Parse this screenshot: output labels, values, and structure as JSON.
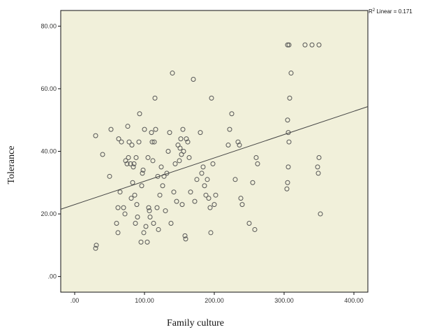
{
  "chart_data": {
    "type": "scatter",
    "title": "",
    "xlabel": "Family culture",
    "ylabel": "Tolerance",
    "xlim": [
      -20,
      420
    ],
    "ylim": [
      -5,
      85
    ],
    "xticks": [
      0,
      100,
      200,
      300,
      400
    ],
    "yticks": [
      0,
      20,
      40,
      60,
      80
    ],
    "xtick_labels": [
      ".00",
      "100.00",
      "200.00",
      "300.00",
      "400.00"
    ],
    "ytick_labels": [
      ".00",
      "20.00",
      "40.00",
      "60.00",
      "80.00"
    ],
    "grid": false,
    "plot_background": "#f1f0da",
    "marker_color": "#555555",
    "fit_line": {
      "x": [
        -20,
        420
      ],
      "y": [
        21.5,
        54.3
      ],
      "label_prefix": "R",
      "label_sup": "2",
      "label_suffix": " Linear = 0.171"
    },
    "points": [
      [
        30,
        9
      ],
      [
        31,
        10
      ],
      [
        30,
        45
      ],
      [
        40,
        39
      ],
      [
        50,
        32
      ],
      [
        52,
        47
      ],
      [
        60,
        17
      ],
      [
        62,
        22
      ],
      [
        62,
        14
      ],
      [
        63,
        44
      ],
      [
        65,
        27
      ],
      [
        67,
        43
      ],
      [
        70,
        22
      ],
      [
        72,
        20
      ],
      [
        73,
        37
      ],
      [
        75,
        36
      ],
      [
        76,
        48
      ],
      [
        77,
        38
      ],
      [
        78,
        43
      ],
      [
        80,
        36
      ],
      [
        81,
        25
      ],
      [
        82,
        42
      ],
      [
        83,
        30
      ],
      [
        84,
        35
      ],
      [
        85,
        36
      ],
      [
        86,
        26
      ],
      [
        87,
        17
      ],
      [
        88,
        38
      ],
      [
        89,
        23
      ],
      [
        90,
        19
      ],
      [
        92,
        43
      ],
      [
        93,
        52
      ],
      [
        95,
        11
      ],
      [
        96,
        29
      ],
      [
        97,
        33
      ],
      [
        98,
        34
      ],
      [
        99,
        14
      ],
      [
        100,
        47
      ],
      [
        102,
        16
      ],
      [
        104,
        11
      ],
      [
        105,
        38
      ],
      [
        106,
        22
      ],
      [
        107,
        21
      ],
      [
        108,
        19
      ],
      [
        110,
        46
      ],
      [
        111,
        43
      ],
      [
        112,
        37
      ],
      [
        113,
        17
      ],
      [
        114,
        43
      ],
      [
        115,
        57
      ],
      [
        116,
        47
      ],
      [
        118,
        22
      ],
      [
        119,
        32
      ],
      [
        120,
        15
      ],
      [
        122,
        26
      ],
      [
        124,
        35
      ],
      [
        126,
        29
      ],
      [
        128,
        32
      ],
      [
        130,
        21
      ],
      [
        132,
        33
      ],
      [
        134,
        40
      ],
      [
        136,
        46
      ],
      [
        138,
        17
      ],
      [
        140,
        65
      ],
      [
        142,
        27
      ],
      [
        144,
        36
      ],
      [
        146,
        24
      ],
      [
        148,
        42
      ],
      [
        150,
        37
      ],
      [
        151,
        41
      ],
      [
        152,
        44
      ],
      [
        153,
        39
      ],
      [
        154,
        23
      ],
      [
        155,
        47
      ],
      [
        156,
        40
      ],
      [
        158,
        13
      ],
      [
        159,
        12
      ],
      [
        160,
        44
      ],
      [
        162,
        43
      ],
      [
        164,
        38
      ],
      [
        166,
        27
      ],
      [
        170,
        63
      ],
      [
        172,
        24
      ],
      [
        175,
        31
      ],
      [
        180,
        46
      ],
      [
        182,
        33
      ],
      [
        184,
        35
      ],
      [
        186,
        29
      ],
      [
        188,
        26
      ],
      [
        190,
        31
      ],
      [
        192,
        25
      ],
      [
        194,
        22
      ],
      [
        195,
        14
      ],
      [
        196,
        57
      ],
      [
        198,
        36
      ],
      [
        200,
        23
      ],
      [
        202,
        26
      ],
      [
        220,
        42
      ],
      [
        222,
        47
      ],
      [
        225,
        52
      ],
      [
        230,
        31
      ],
      [
        234,
        43
      ],
      [
        236,
        42
      ],
      [
        238,
        25
      ],
      [
        240,
        23
      ],
      [
        250,
        17
      ],
      [
        255,
        30
      ],
      [
        258,
        15
      ],
      [
        260,
        38
      ],
      [
        262,
        36
      ],
      [
        305,
        74
      ],
      [
        307,
        74
      ],
      [
        305,
        50
      ],
      [
        306,
        46
      ],
      [
        307,
        43
      ],
      [
        306,
        35
      ],
      [
        305,
        30
      ],
      [
        304,
        28
      ],
      [
        310,
        65
      ],
      [
        308,
        57
      ],
      [
        330,
        74
      ],
      [
        340,
        74
      ],
      [
        350,
        74
      ],
      [
        348,
        35
      ],
      [
        349,
        33
      ],
      [
        350,
        38
      ],
      [
        352,
        20
      ]
    ]
  }
}
